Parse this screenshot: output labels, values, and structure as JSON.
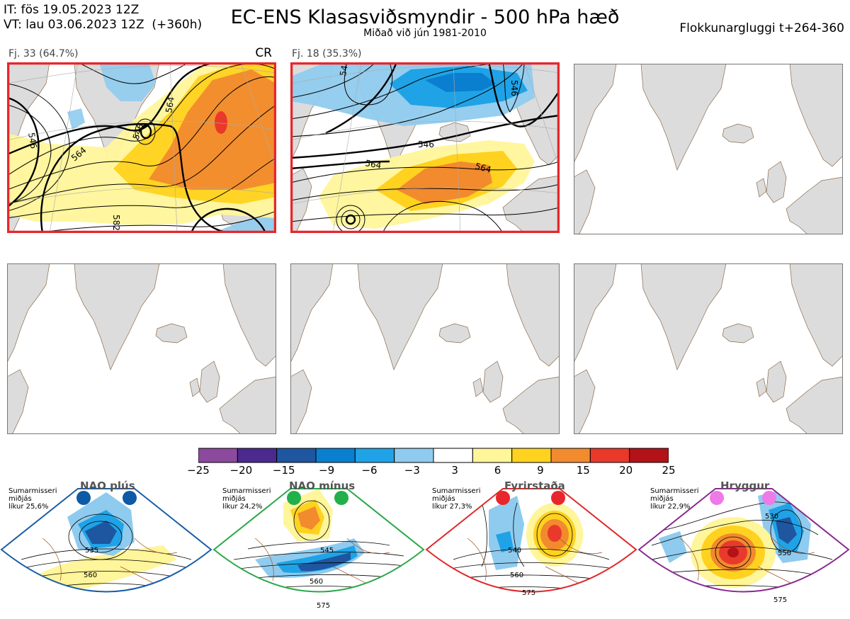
{
  "header": {
    "it_line": "IT: fös 19.05.2023 12Z",
    "vt_line": "VT: lau 03.06.2023 12Z  (+360h)",
    "title": "EC-ENS Klasasviðsmyndir - 500 hPa hæð",
    "subtitle": "Miðað við jún 1981-2010",
    "window": "Flokkunargluggi t+264-360"
  },
  "clusters": [
    {
      "label": "Fj. 33 (64.7%)",
      "code": "CR",
      "contour_labels": [
        "564",
        "546",
        "582",
        "546",
        "564"
      ]
    },
    {
      "label": "Fj. 18 (35.3%)",
      "code": "",
      "contour_labels": [
        "546",
        "564",
        "564",
        "546",
        "546"
      ]
    },
    {
      "label": ""
    },
    {
      "label": ""
    },
    {
      "label": ""
    },
    {
      "label": ""
    }
  ],
  "colorbar": {
    "ticks": [
      "−25",
      "−20",
      "−15",
      "−9",
      "−6",
      "−3",
      "3",
      "6",
      "9",
      "15",
      "20",
      "25"
    ],
    "colors": [
      "#8b4a9e",
      "#4b2a8f",
      "#1f56a0",
      "#0a7fd0",
      "#1fa3e6",
      "#8fcbee",
      "#ffffff",
      "#fff59a",
      "#ffd21f",
      "#f28a2e",
      "#e8392b",
      "#b31218"
    ]
  },
  "regimes": [
    {
      "name": "NAO plús",
      "info": "Sumarmisseri\nmiðjás\nlíkur 25,6%",
      "dot_color": "#0d5aa7",
      "frame_color": "#1a5ea8",
      "contours": [
        "535",
        "560"
      ]
    },
    {
      "name": "NAO mínus",
      "info": "Sumarmisseri\nmiðjás\nlíkur 24,2%",
      "dot_color": "#22b04b",
      "frame_color": "#2aa84a",
      "contours": [
        "545",
        "560",
        "575"
      ]
    },
    {
      "name": "Fyrirstaða",
      "info": "Sumarmisseri\nmiðjás\nlíkur 27,3%",
      "dot_color": "#e8262b",
      "frame_color": "#e0282a",
      "contours": [
        "540",
        "560",
        "575"
      ]
    },
    {
      "name": "Hryggur",
      "info": "Sumarmisseri\nmiðjás\nlíkur 22,9%",
      "dot_color": "#ee7ae8",
      "frame_color": "#8a2a8f",
      "contours": [
        "530",
        "550",
        "575"
      ]
    }
  ]
}
